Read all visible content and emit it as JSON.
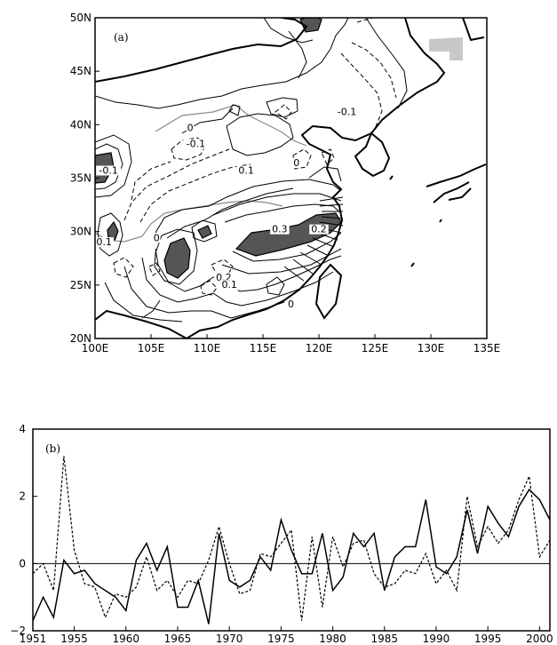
{
  "chart_data": [
    {
      "type": "contour-map",
      "panel_label": "(a)",
      "x_ticks": [
        "100E",
        "105E",
        "110E",
        "115E",
        "120E",
        "125E",
        "130E",
        "135E"
      ],
      "y_ticks": [
        "20N",
        "25N",
        "30N",
        "35N",
        "40N",
        "45N",
        "50N"
      ],
      "xlim": [
        100,
        135
      ],
      "ylim": [
        20,
        50
      ],
      "contour_labels": [
        {
          "text": "-0.1",
          "lon": 122.5,
          "lat": 41.0
        },
        {
          "text": "0",
          "lon": 108.5,
          "lat": 39.5
        },
        {
          "text": "-0.1",
          "lon": 109.0,
          "lat": 38.0
        },
        {
          "text": "0.1",
          "lon": 113.5,
          "lat": 35.5
        },
        {
          "text": "0",
          "lon": 118.0,
          "lat": 36.2
        },
        {
          "text": "-0.1",
          "lon": 101.2,
          "lat": 35.5
        },
        {
          "text": "0.1",
          "lon": 100.8,
          "lat": 28.8
        },
        {
          "text": "0",
          "lon": 105.5,
          "lat": 29.2
        },
        {
          "text": "0.3",
          "lon": 116.5,
          "lat": 30.0
        },
        {
          "text": "0.2",
          "lon": 120.0,
          "lat": 30.0
        },
        {
          "text": "0.2",
          "lon": 111.5,
          "lat": 25.5
        },
        {
          "text": "0.1",
          "lon": 112.0,
          "lat": 24.8
        },
        {
          "text": "0",
          "lon": 117.5,
          "lat": 23.0
        }
      ],
      "grid": false
    },
    {
      "type": "line",
      "panel_label": "(b)",
      "x": [
        1951,
        1952,
        1953,
        1954,
        1955,
        1956,
        1957,
        1958,
        1959,
        1960,
        1961,
        1962,
        1963,
        1964,
        1965,
        1966,
        1967,
        1968,
        1969,
        1970,
        1971,
        1972,
        1973,
        1974,
        1975,
        1976,
        1977,
        1978,
        1979,
        1980,
        1981,
        1982,
        1983,
        1984,
        1985,
        1986,
        1987,
        1988,
        1989,
        1990,
        1991,
        1992,
        1993,
        1994,
        1995,
        1996,
        1997,
        1998,
        1999,
        2000,
        2001
      ],
      "series": [
        {
          "style": "solid",
          "values": [
            -1.7,
            -1.0,
            -1.6,
            0.1,
            -0.3,
            -0.2,
            -0.6,
            -0.8,
            -1.0,
            -1.4,
            0.1,
            0.6,
            -0.2,
            0.5,
            -1.3,
            -1.3,
            -0.5,
            -1.8,
            0.9,
            -0.5,
            -0.7,
            -0.5,
            0.2,
            -0.2,
            1.3,
            0.4,
            -0.3,
            -0.3,
            0.9,
            -0.8,
            -0.4,
            0.9,
            0.5,
            0.9,
            -0.8,
            0.2,
            0.5,
            0.5,
            1.9,
            -0.1,
            -0.3,
            0.2,
            1.6,
            0.3,
            1.7,
            1.2,
            0.8,
            1.7,
            2.2,
            1.9,
            1.3
          ]
        },
        {
          "style": "dashed",
          "values": [
            -0.3,
            0.0,
            -0.8,
            3.2,
            0.4,
            -0.6,
            -0.7,
            -1.6,
            -0.9,
            -1.0,
            -0.7,
            0.2,
            -0.8,
            -0.5,
            -1.0,
            -0.5,
            -0.6,
            0.1,
            1.1,
            0.0,
            -0.9,
            -0.8,
            0.3,
            0.2,
            0.6,
            1.0,
            -1.7,
            0.8,
            -1.3,
            0.8,
            -0.1,
            0.6,
            0.7,
            -0.3,
            -0.7,
            -0.6,
            -0.2,
            -0.3,
            0.3,
            -0.6,
            -0.2,
            -0.8,
            2.0,
            0.5,
            1.1,
            0.6,
            1.0,
            1.9,
            2.6,
            0.2,
            0.7
          ]
        }
      ],
      "x_ticks": [
        1951,
        1955,
        1960,
        1965,
        1970,
        1975,
        1980,
        1985,
        1990,
        1995,
        2000
      ],
      "y_ticks": [
        -2,
        0,
        2,
        4
      ],
      "xlim": [
        1951,
        2001
      ],
      "ylim": [
        -2,
        4
      ],
      "zero_line": true,
      "grid": false
    }
  ]
}
